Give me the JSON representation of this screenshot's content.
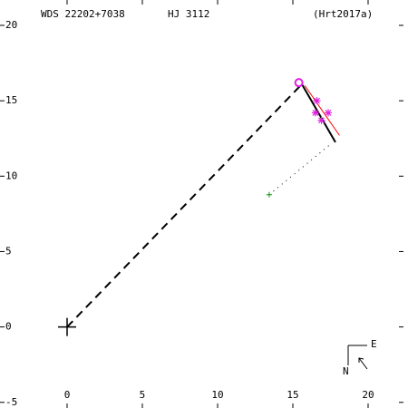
{
  "chart_data": {
    "type": "scatter",
    "title": "WDS 22202+7038",
    "subtitle": "HJ 3112",
    "reference": "(Hrt2017a)",
    "compass": {
      "north": "N",
      "east": "E"
    },
    "xlim": [
      -4.458,
      22.651
    ],
    "ylim": [
      -5.375,
      21.682
    ],
    "xticks": [
      0,
      5,
      10,
      15,
      20
    ],
    "yticks": [
      20,
      15,
      10,
      5,
      0,
      -5
    ],
    "primary": {
      "x": 0,
      "y": 0,
      "color": "#000000"
    },
    "observations": {
      "x": [
        16.6,
        16.5,
        17.35,
        16.9
      ],
      "y": [
        15.0,
        14.2,
        14.2,
        13.7
      ],
      "color": "#e020e0"
    },
    "circled": {
      "x": 15.4,
      "y": 16.2,
      "color": "#e020e0"
    },
    "predicted": {
      "x": 13.43,
      "y": 8.77,
      "color": "#109010"
    },
    "segments": [
      {
        "x": [
          0,
          15.6
        ],
        "y": [
          0,
          16.1
        ],
        "color": "#000000",
        "style": "dashed"
      },
      {
        "x": [
          15.6,
          17.83
        ],
        "y": [
          16.1,
          12.25
        ],
        "color": "#000000",
        "style": "solid"
      },
      {
        "x": [
          15.8,
          18.1
        ],
        "y": [
          16.0,
          12.7
        ],
        "color": "#ff0000",
        "style": "thin"
      },
      {
        "x": [
          13.43,
          17.6
        ],
        "y": [
          8.77,
          12.2
        ],
        "color": "#000000",
        "style": "dotted"
      }
    ]
  }
}
